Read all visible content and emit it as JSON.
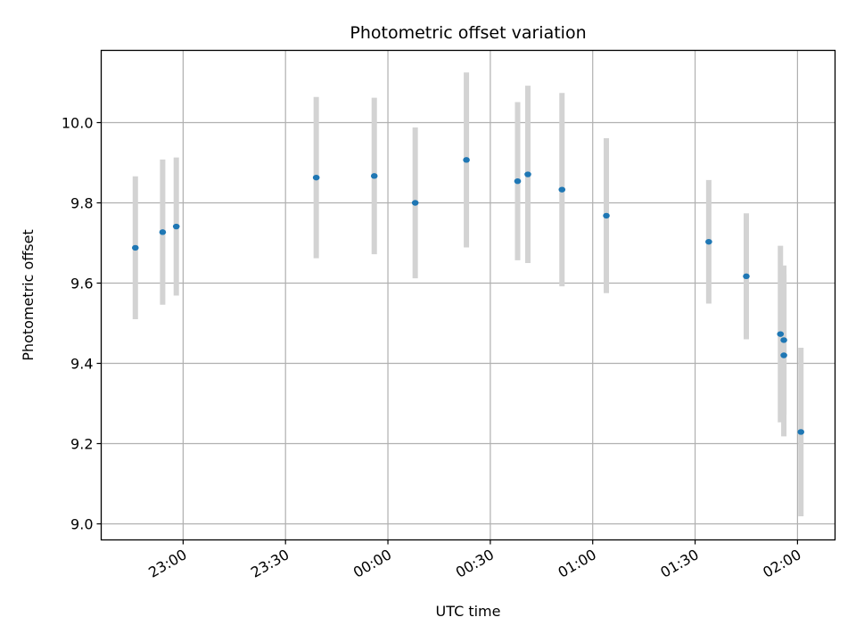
{
  "chart_data": {
    "type": "scatter",
    "title": "Photometric offset variation",
    "xlabel": "UTC time",
    "ylabel": "Photometric offset",
    "x_unit": "UTC time (hh:mm), axis spans 22:36 to 02:11, crossing midnight",
    "xlim": [
      "22:36",
      "02:11"
    ],
    "ylim": [
      8.96,
      10.18
    ],
    "xticks": [
      {
        "label": "23:00",
        "time": "23:00"
      },
      {
        "label": "23:30",
        "time": "23:30"
      },
      {
        "label": "00:00",
        "time": "00:00"
      },
      {
        "label": "00:30",
        "time": "00:30"
      },
      {
        "label": "01:00",
        "time": "01:00"
      },
      {
        "label": "01:30",
        "time": "01:30"
      },
      {
        "label": "02:00",
        "time": "02:00"
      }
    ],
    "yticks": [
      {
        "label": "9.0",
        "value": 9.0
      },
      {
        "label": "9.2",
        "value": 9.2
      },
      {
        "label": "9.4",
        "value": 9.4
      },
      {
        "label": "9.6",
        "value": 9.6
      },
      {
        "label": "9.8",
        "value": 9.8
      },
      {
        "label": "10.0",
        "value": 10.0
      }
    ],
    "grid": true,
    "marker_color": "#1f77b4",
    "errorbar_color": "#d3d3d3",
    "points": [
      {
        "time": "22:46",
        "y": 9.688,
        "err": 0.178
      },
      {
        "time": "22:54",
        "y": 9.727,
        "err": 0.181
      },
      {
        "time": "22:58",
        "y": 9.741,
        "err": 0.172
      },
      {
        "time": "23:39",
        "y": 9.863,
        "err": 0.201
      },
      {
        "time": "23:56",
        "y": 9.867,
        "err": 0.195
      },
      {
        "time": "00:08",
        "y": 9.8,
        "err": 0.188
      },
      {
        "time": "00:23",
        "y": 9.907,
        "err": 0.218
      },
      {
        "time": "00:38",
        "y": 9.854,
        "err": 0.197
      },
      {
        "time": "00:41",
        "y": 9.871,
        "err": 0.221
      },
      {
        "time": "00:51",
        "y": 9.833,
        "err": 0.241
      },
      {
        "time": "01:04",
        "y": 9.768,
        "err": 0.193
      },
      {
        "time": "01:34",
        "y": 9.703,
        "err": 0.154
      },
      {
        "time": "01:45",
        "y": 9.617,
        "err": 0.157
      },
      {
        "time": "01:55",
        "y": 9.473,
        "err": 0.22
      },
      {
        "time": "01:56",
        "y": 9.458,
        "err": 0.186
      },
      {
        "time": "01:56",
        "y": 9.42,
        "err": 0.202
      },
      {
        "time": "02:01",
        "y": 9.229,
        "err": 0.21
      }
    ]
  }
}
